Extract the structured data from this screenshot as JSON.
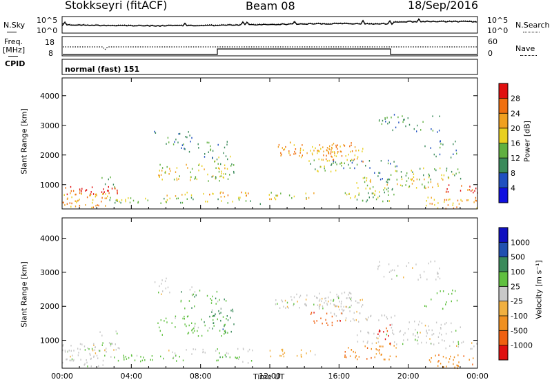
{
  "header": {
    "station": "Stokkseyri (fitACF)",
    "beam": "Beam 08",
    "date": "18/Sep/2016"
  },
  "noise_panel": {
    "left_label": "N.Sky",
    "right_label": "N.Search",
    "left_ticks": [
      "10^5",
      "10^0"
    ],
    "right_ticks": [
      "10^5",
      "10^0"
    ]
  },
  "freq_panel": {
    "left_label_1": "Freq.",
    "left_label_2": "[MHz]",
    "right_label": "Nave",
    "left_ticks": [
      "18",
      "8"
    ],
    "right_ticks": [
      "60",
      "0"
    ]
  },
  "cpid": {
    "label": "CPID",
    "mode": "normal (fast) 151"
  },
  "power_panel": {
    "ylabel": "Slant Range [km]",
    "yticks": [
      "1000",
      "2000",
      "3000",
      "4000"
    ],
    "colorbar_label": "Power [dB]",
    "colorbar_ticks": [
      "4",
      "8",
      "12",
      "16",
      "20",
      "24",
      "28"
    ],
    "colors": [
      "#1010e0",
      "#2050c0",
      "#3a8a5a",
      "#60b040",
      "#e8d020",
      "#f0a020",
      "#f07010",
      "#e01010"
    ]
  },
  "velocity_panel": {
    "ylabel": "Slant Range [km]",
    "yticks": [
      "1000",
      "2000",
      "3000",
      "4000"
    ],
    "colorbar_label": "Velocity [m s⁻¹]",
    "colorbar_ticks": [
      "-1000",
      "-500",
      "-100",
      "-25",
      "25",
      "100",
      "500",
      "1000"
    ],
    "colors": [
      "#e01010",
      "#f06010",
      "#f09020",
      "#f0b040",
      "#c8c8c8",
      "#60c040",
      "#3a8a5a",
      "#2050b0",
      "#1010c0"
    ]
  },
  "x_axis": {
    "label": "Time UT",
    "ticks": [
      "00:00",
      "04:00",
      "08:00",
      "12:00",
      "16:00",
      "20:00",
      "00:00"
    ]
  },
  "chart_data": [
    {
      "type": "line",
      "title": "",
      "ylabel": "N.Sky",
      "series": [
        {
          "name": "N.Sky"
        },
        {
          "name": "N.Search"
        }
      ],
      "x": [
        "00:00",
        "04:00",
        "08:00",
        "12:00",
        "16:00",
        "20:00",
        "00:00"
      ]
    },
    {
      "type": "line",
      "ylabel": "Freq. [MHz]",
      "series": [
        {
          "name": "Freq.",
          "x": [
            "00:00",
            "09:00",
            "09:00",
            "19:00",
            "19:00",
            "24:00"
          ],
          "values": [
            8,
            8,
            11,
            11,
            8,
            8
          ]
        },
        {
          "name": "Nave",
          "values": [
            40,
            40
          ]
        }
      ]
    },
    {
      "type": "heatmap",
      "ylabel": "Slant Range [km]",
      "xlabel": "Time UT",
      "ylim": [
        180,
        4600
      ],
      "colorbar": "Power [dB]",
      "clim": [
        0,
        32
      ]
    },
    {
      "type": "heatmap",
      "ylabel": "Slant Range [km]",
      "xlabel": "Time UT",
      "ylim": [
        180,
        4600
      ],
      "colorbar": "Velocity [m s⁻¹]"
    }
  ]
}
